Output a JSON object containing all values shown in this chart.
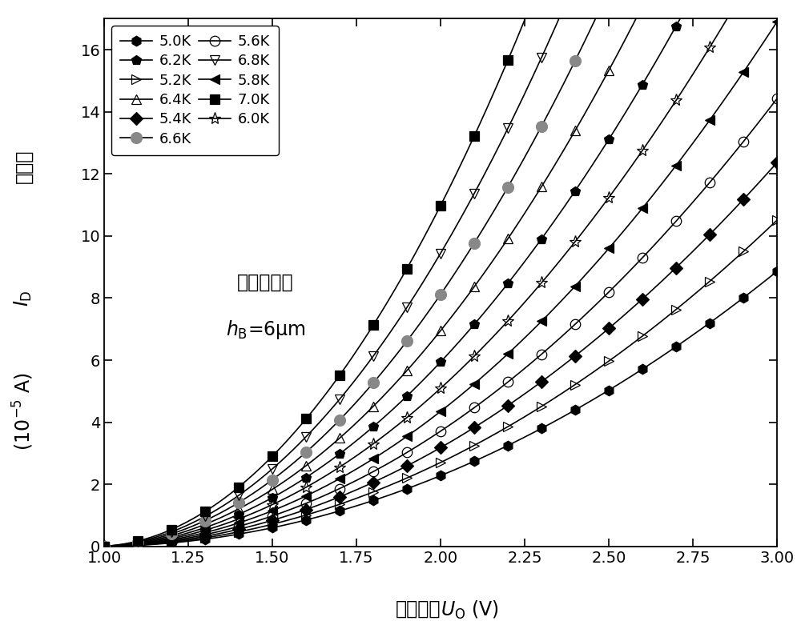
{
  "xlim": [
    1.0,
    3.0
  ],
  "ylim": [
    0,
    17
  ],
  "xticks": [
    1.0,
    1.25,
    1.5,
    1.75,
    2.0,
    2.25,
    2.5,
    2.75,
    3.0
  ],
  "yticks": [
    0,
    2,
    4,
    6,
    8,
    10,
    12,
    14,
    16
  ],
  "annotation_line1": "阻挡层厚度",
  "annotation_line2": "h_B=6μm",
  "temperatures": [
    "5.0K",
    "5.2K",
    "5.4K",
    "5.6K",
    "5.8K",
    "6.0K",
    "6.2K",
    "6.4K",
    "6.6K",
    "6.8K",
    "7.0K"
  ],
  "curve_params": [
    {
      "a": 2.15,
      "b": 2.0,
      "v0": 0.97
    },
    {
      "a": 2.55,
      "b": 2.0,
      "v0": 0.97
    },
    {
      "a": 3.0,
      "b": 2.0,
      "v0": 0.97
    },
    {
      "a": 3.5,
      "b": 2.0,
      "v0": 0.97
    },
    {
      "a": 4.1,
      "b": 2.0,
      "v0": 0.97
    },
    {
      "a": 4.8,
      "b": 2.0,
      "v0": 0.97
    },
    {
      "a": 5.6,
      "b": 2.0,
      "v0": 0.97
    },
    {
      "a": 6.55,
      "b": 2.0,
      "v0": 0.97
    },
    {
      "a": 7.65,
      "b": 2.0,
      "v0": 0.97
    },
    {
      "a": 8.9,
      "b": 2.0,
      "v0": 0.97
    },
    {
      "a": 10.35,
      "b": 2.0,
      "v0": 0.97
    }
  ],
  "markers": [
    "h",
    ">",
    "D",
    "o",
    "<",
    "*",
    "p",
    "^",
    "o",
    "v",
    "s"
  ],
  "mfc": [
    "black",
    "none",
    "black",
    "none",
    "black",
    "none",
    "black",
    "none",
    "gray",
    "none",
    "black"
  ],
  "mec": [
    "black",
    "black",
    "black",
    "black",
    "black",
    "black",
    "black",
    "black",
    "gray",
    "black",
    "black"
  ],
  "msizes": [
    9,
    9,
    8,
    9,
    9,
    11,
    9,
    9,
    10,
    9,
    8
  ],
  "markevery": 2,
  "linewidth": 1.2,
  "line_color": "#000000",
  "background": "#ffffff",
  "xlabel_cn": "工作偏压",
  "xlabel_en": "$U_{\\rm O}$ (V)",
  "ylabel_cn": "暗电流",
  "ylabel_id": "$I_{\\rm D}$",
  "ylabel_unit": " (10$^{-5}$ A)",
  "fontsize_tick": 14,
  "fontsize_label": 17,
  "fontsize_legend": 13,
  "fontsize_annot": 17
}
